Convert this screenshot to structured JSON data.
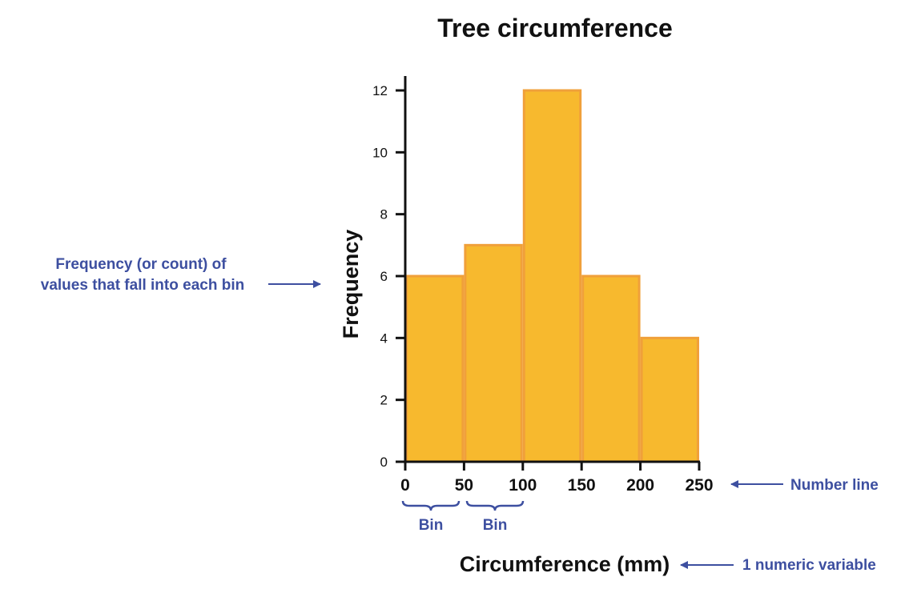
{
  "chart_data": {
    "type": "bar",
    "title": "Tree circumference",
    "xlabel": "Circumference (mm)",
    "ylabel": "Frequency",
    "bin_edges": [
      0,
      50,
      100,
      150,
      200,
      250
    ],
    "values": [
      6,
      7,
      12,
      6,
      4
    ],
    "xlim": [
      0,
      250
    ],
    "ylim": [
      0,
      12
    ],
    "x_ticks": [
      "0",
      "50",
      "100",
      "150",
      "200",
      "250"
    ],
    "y_ticks": [
      "0",
      "2",
      "4",
      "6",
      "8",
      "10",
      "12"
    ],
    "grid": false,
    "colors": {
      "bar_fill": "#F7B92E",
      "bar_edge": "#F0A03A",
      "annotation": "#3D4FA0"
    },
    "annotations": {
      "frequency_line1": "Frequency (or count) of",
      "frequency_line2": "values that fall into each bin",
      "bin1": "Bin",
      "bin2": "Bin",
      "number_line": "Number line",
      "variable": "1 numeric variable"
    }
  }
}
